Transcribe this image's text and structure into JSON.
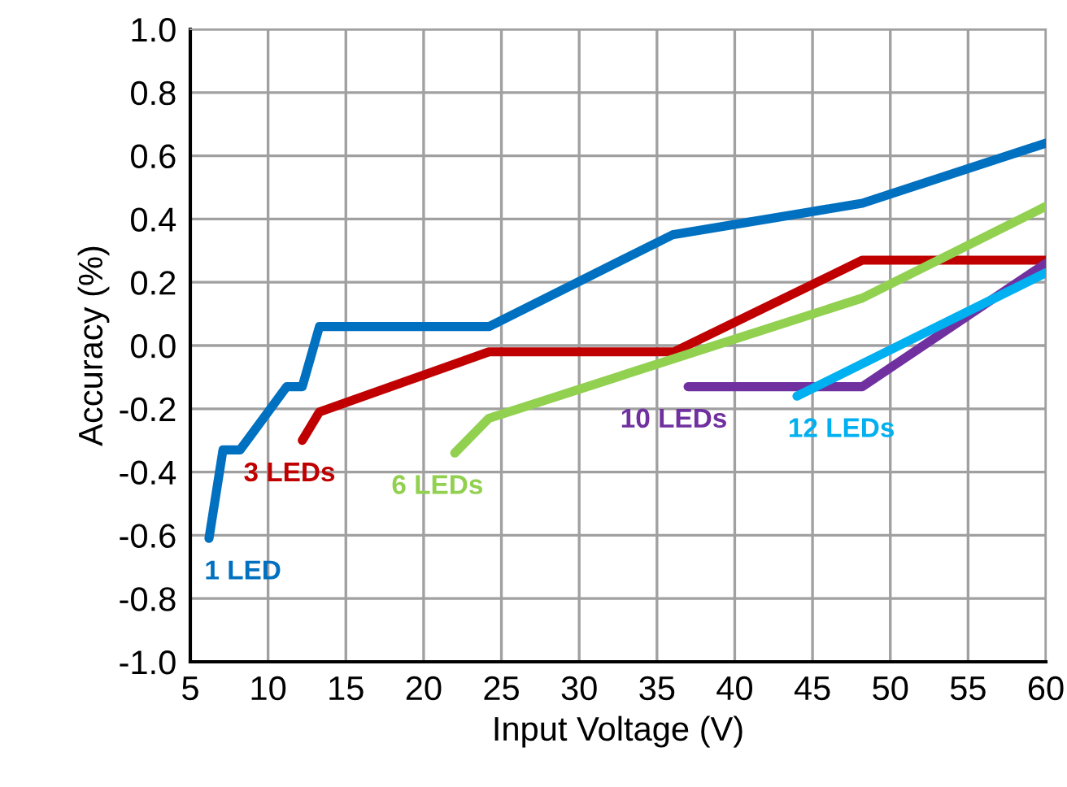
{
  "chart_data": {
    "type": "line",
    "xlabel": "Input Voltage (V)",
    "ylabel": "Accuracy (%)",
    "xlim": [
      5,
      60
    ],
    "xticks": [
      5,
      10,
      15,
      20,
      25,
      30,
      35,
      40,
      45,
      50,
      55,
      60
    ],
    "ylim": [
      -1.0,
      1.0
    ],
    "yticks": [
      {
        "value": -1.0,
        "label": "-1.0"
      },
      {
        "value": -0.8,
        "label": "-0.8"
      },
      {
        "value": -0.6,
        "label": "-0.6"
      },
      {
        "value": -0.4,
        "label": "-0.4"
      },
      {
        "value": -0.2,
        "label": "-0.2"
      },
      {
        "value": 0.0,
        "label": "0.0"
      },
      {
        "value": 0.2,
        "label": "0.2"
      },
      {
        "value": 0.4,
        "label": "0.4"
      },
      {
        "value": 0.6,
        "label": "0.6"
      },
      {
        "value": 0.8,
        "label": "0.8"
      },
      {
        "value": 1.0,
        "label": "1.0"
      }
    ],
    "grid": true,
    "legend": false,
    "marker": "none",
    "line_style": "solid",
    "series": [
      {
        "name": "1 LED",
        "color": "#0070c0",
        "x": [
          6.2,
          7.1,
          8.2,
          11.2,
          12.2,
          13.3,
          24.2,
          36,
          48.2,
          60
        ],
        "values": [
          -0.61,
          -0.33,
          -0.33,
          -0.13,
          -0.13,
          0.06,
          0.06,
          0.35,
          0.45,
          0.64
        ]
      },
      {
        "name": "3 LEDs",
        "color": "#c00000",
        "x": [
          12.2,
          13.3,
          24.2,
          36.1,
          48.2,
          60
        ],
        "values": [
          -0.3,
          -0.21,
          -0.02,
          -0.02,
          0.27,
          0.27
        ]
      },
      {
        "name": "6 LEDs",
        "color": "#92d050",
        "x": [
          22,
          24.2,
          48.2,
          60
        ],
        "values": [
          -0.34,
          -0.23,
          0.15,
          0.44
        ]
      },
      {
        "name": "10 LEDs",
        "color": "#7030a0",
        "x": [
          37,
          48.2,
          60
        ],
        "values": [
          -0.13,
          -0.13,
          0.26
        ]
      },
      {
        "name": "12 LEDs",
        "color": "#00b0f0",
        "x": [
          44,
          60
        ],
        "values": [
          -0.16,
          0.23
        ]
      }
    ]
  }
}
